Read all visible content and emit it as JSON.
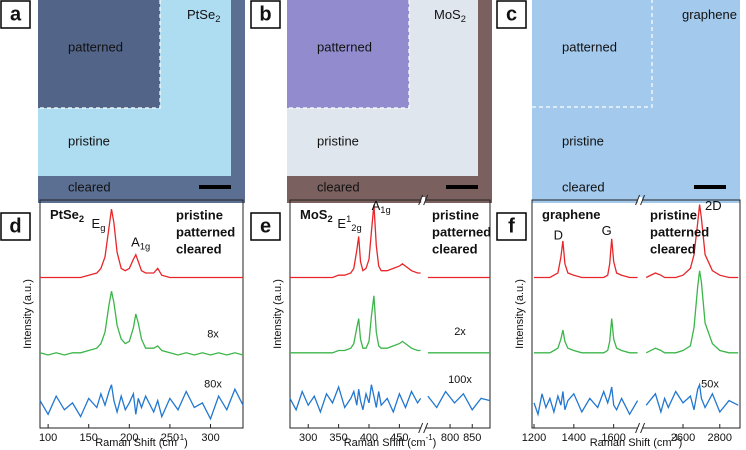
{
  "images": [
    {
      "label": "a",
      "material": {
        "base": "PtSe",
        "sub": "2"
      },
      "regions": [
        "patterned",
        "pristine",
        "cleared"
      ]
    },
    {
      "label": "b",
      "material": {
        "base": "MoS",
        "sub": "2"
      },
      "regions": [
        "patterned",
        "pristine",
        "cleared"
      ]
    },
    {
      "label": "c",
      "material": {
        "base": "graphene"
      },
      "regions": [
        "patterned",
        "pristine",
        "cleared"
      ]
    }
  ],
  "chart_data": [
    {
      "type": "line",
      "label": "d",
      "title": {
        "base": "PtSe",
        "sub": "2"
      },
      "ylabel": "Intensity (a.u.)",
      "xlabel": {
        "base": "Raman Shift (cm",
        "sup": "-1",
        "end": ")"
      },
      "xlim": [
        [
          90,
          340
        ]
      ],
      "xticks": [
        100,
        150,
        200,
        250,
        300
      ],
      "ylim": [
        0,
        10
      ],
      "x": [
        90,
        100,
        110,
        120,
        130,
        140,
        150,
        160,
        165,
        170,
        175,
        178,
        181,
        185,
        190,
        195,
        200,
        205,
        208,
        211,
        215,
        220,
        230,
        235,
        240,
        250,
        260,
        270,
        280,
        290,
        300,
        310,
        320,
        330,
        340
      ],
      "series": [
        {
          "name": "pristine",
          "color": "#e8262a",
          "values": [
            6.6,
            6.6,
            6.6,
            6.6,
            6.6,
            6.6,
            6.7,
            6.8,
            7.0,
            7.5,
            8.8,
            9.6,
            9.0,
            7.7,
            7.0,
            6.9,
            7.0,
            7.4,
            7.6,
            7.3,
            6.9,
            6.8,
            6.8,
            7.0,
            6.7,
            6.6,
            6.6,
            6.6,
            6.6,
            6.6,
            6.6,
            6.6,
            6.6,
            6.6,
            6.6
          ]
        },
        {
          "name": "patterned",
          "color": "#3cb54a",
          "scale_label": "8x",
          "values": [
            3.3,
            3.2,
            3.3,
            3.2,
            3.3,
            3.3,
            3.4,
            3.5,
            3.7,
            4.2,
            5.4,
            6.0,
            5.5,
            4.5,
            3.9,
            3.7,
            3.8,
            4.4,
            5.0,
            4.6,
            3.9,
            3.5,
            3.5,
            3.6,
            3.4,
            3.3,
            3.2,
            3.3,
            3.2,
            3.3,
            3.2,
            3.3,
            3.2,
            3.3,
            3.2
          ]
        },
        {
          "name": "cleared",
          "color": "#2277d0",
          "scale_label": "80x",
          "values": [
            1.2,
            0.6,
            1.4,
            0.8,
            1.1,
            0.5,
            1.3,
            0.9,
            1.5,
            1.0,
            1.6,
            1.9,
            1.2,
            0.7,
            1.4,
            0.8,
            1.1,
            1.5,
            0.6,
            1.3,
            0.9,
            1.4,
            0.7,
            1.2,
            0.5,
            1.3,
            0.8,
            1.6,
            0.9,
            1.1,
            0.4,
            1.4,
            0.8,
            1.7,
            1.0
          ]
        }
      ],
      "peaks": [
        {
          "base": "E",
          "sub": "g"
        },
        {
          "base": "A",
          "sub": "1g"
        }
      ]
    },
    {
      "type": "line",
      "label": "e",
      "title": {
        "base": "MoS",
        "sub": "2"
      },
      "ylabel": "Intensity (a.u.)",
      "xlabel": {
        "base": "Raman Shift (cm",
        "sup": "-1",
        "end": ")"
      },
      "xlim": [
        [
          270,
          485
        ],
        [
          745,
          890
        ]
      ],
      "xticks": [
        300,
        350,
        400,
        450,
        800,
        850
      ],
      "ylim": [
        0,
        10
      ],
      "x": [
        270,
        280,
        290,
        300,
        310,
        320,
        330,
        340,
        350,
        360,
        370,
        375,
        380,
        383,
        386,
        390,
        395,
        400,
        404,
        408,
        412,
        416,
        420,
        430,
        440,
        450,
        455,
        460,
        470,
        480,
        485,
        750,
        770,
        790,
        810,
        830,
        850,
        870,
        890
      ],
      "series": [
        {
          "name": "pristine",
          "color": "#e8262a",
          "values": [
            6.6,
            6.6,
            6.6,
            6.6,
            6.6,
            6.6,
            6.6,
            6.6,
            6.7,
            6.7,
            6.8,
            7.0,
            7.8,
            8.4,
            7.3,
            6.9,
            7.0,
            7.4,
            8.6,
            9.8,
            8.0,
            7.1,
            6.9,
            6.9,
            7.0,
            7.1,
            7.2,
            7.1,
            6.9,
            6.8,
            6.8,
            6.6,
            6.6,
            6.6,
            6.6,
            6.6,
            6.6,
            6.6,
            6.6
          ]
        },
        {
          "name": "patterned",
          "color": "#3cb54a",
          "scale_label": "2x",
          "values": [
            3.3,
            3.3,
            3.3,
            3.3,
            3.3,
            3.3,
            3.3,
            3.3,
            3.4,
            3.4,
            3.5,
            3.7,
            4.4,
            4.8,
            3.9,
            3.5,
            3.5,
            3.8,
            4.9,
            5.8,
            4.2,
            3.6,
            3.5,
            3.5,
            3.6,
            3.7,
            3.8,
            3.7,
            3.5,
            3.4,
            3.4,
            3.3,
            3.3,
            3.3,
            3.3,
            3.3,
            3.3,
            3.3,
            3.3
          ]
        },
        {
          "name": "cleared",
          "color": "#2277d0",
          "scale_label": "100x",
          "values": [
            1.3,
            0.8,
            1.6,
            1.0,
            1.4,
            0.7,
            1.5,
            1.1,
            1.8,
            0.9,
            1.3,
            1.6,
            1.0,
            1.7,
            1.2,
            0.8,
            1.5,
            1.1,
            1.9,
            1.4,
            0.9,
            1.6,
            1.0,
            1.3,
            0.7,
            1.5,
            1.2,
            0.9,
            1.6,
            1.1,
            1.3,
            1.4,
            0.9,
            1.6,
            1.1,
            1.5,
            0.8,
            1.3,
            1.2
          ]
        }
      ],
      "peaks": [
        {
          "base": "E",
          "sup": "1",
          "sub": "2g"
        },
        {
          "base": "A",
          "sub": "1g"
        }
      ]
    },
    {
      "type": "line",
      "label": "f",
      "title": {
        "base": "graphene"
      },
      "ylabel": "Intensity (a.u.)",
      "xlabel": {
        "base": "Raman Shift (cm",
        "sup": "-1",
        "end": ")"
      },
      "xlim": [
        [
          1190,
          1720
        ],
        [
          2380,
          2910
        ]
      ],
      "xticks": [
        1200,
        1400,
        1600,
        2600,
        2800
      ],
      "ylim": [
        0,
        10
      ],
      "x": [
        1200,
        1220,
        1240,
        1260,
        1280,
        1300,
        1320,
        1335,
        1345,
        1355,
        1370,
        1400,
        1440,
        1480,
        1520,
        1550,
        1570,
        1580,
        1590,
        1600,
        1615,
        1640,
        1680,
        1720,
        2400,
        2450,
        2480,
        2500,
        2520,
        2560,
        2600,
        2640,
        2660,
        2680,
        2690,
        2700,
        2720,
        2760,
        2800,
        2850,
        2900
      ],
      "series": [
        {
          "name": "pristine",
          "color": "#e8262a",
          "values": [
            6.6,
            6.6,
            6.6,
            6.6,
            6.6,
            6.7,
            6.8,
            7.5,
            8.2,
            7.2,
            6.8,
            6.7,
            6.6,
            6.6,
            6.6,
            6.6,
            6.7,
            7.2,
            8.3,
            7.3,
            6.8,
            6.7,
            6.6,
            6.6,
            6.6,
            6.8,
            6.7,
            6.6,
            6.6,
            6.6,
            6.7,
            7.0,
            7.6,
            9.0,
            9.8,
            9.2,
            7.6,
            6.9,
            6.7,
            6.6,
            6.6
          ]
        },
        {
          "name": "patterned",
          "color": "#3cb54a",
          "values": [
            3.3,
            3.3,
            3.3,
            3.3,
            3.3,
            3.4,
            3.5,
            3.9,
            4.3,
            3.8,
            3.5,
            3.4,
            3.3,
            3.3,
            3.3,
            3.3,
            3.4,
            3.8,
            4.8,
            3.9,
            3.5,
            3.4,
            3.3,
            3.3,
            3.3,
            3.5,
            3.4,
            3.3,
            3.3,
            3.3,
            3.4,
            3.6,
            4.4,
            6.2,
            6.9,
            6.4,
            4.6,
            3.7,
            3.4,
            3.3,
            3.3
          ]
        },
        {
          "name": "cleared",
          "color": "#2277d0",
          "scale_label": "50x",
          "values": [
            1.1,
            0.6,
            1.5,
            0.9,
            1.3,
            0.7,
            1.4,
            1.0,
            1.6,
            0.8,
            1.2,
            1.5,
            0.7,
            1.3,
            0.9,
            1.6,
            1.1,
            1.4,
            1.8,
            1.0,
            0.8,
            1.3,
            0.6,
            1.2,
            1.0,
            1.5,
            0.7,
            1.3,
            0.9,
            1.6,
            1.1,
            1.4,
            0.8,
            1.7,
            1.9,
            1.3,
            0.9,
            1.5,
            0.7,
            1.2,
            1.0
          ]
        }
      ],
      "peaks": [
        {
          "base": "D"
        },
        {
          "base": "G"
        },
        {
          "base": "2D"
        }
      ]
    }
  ]
}
